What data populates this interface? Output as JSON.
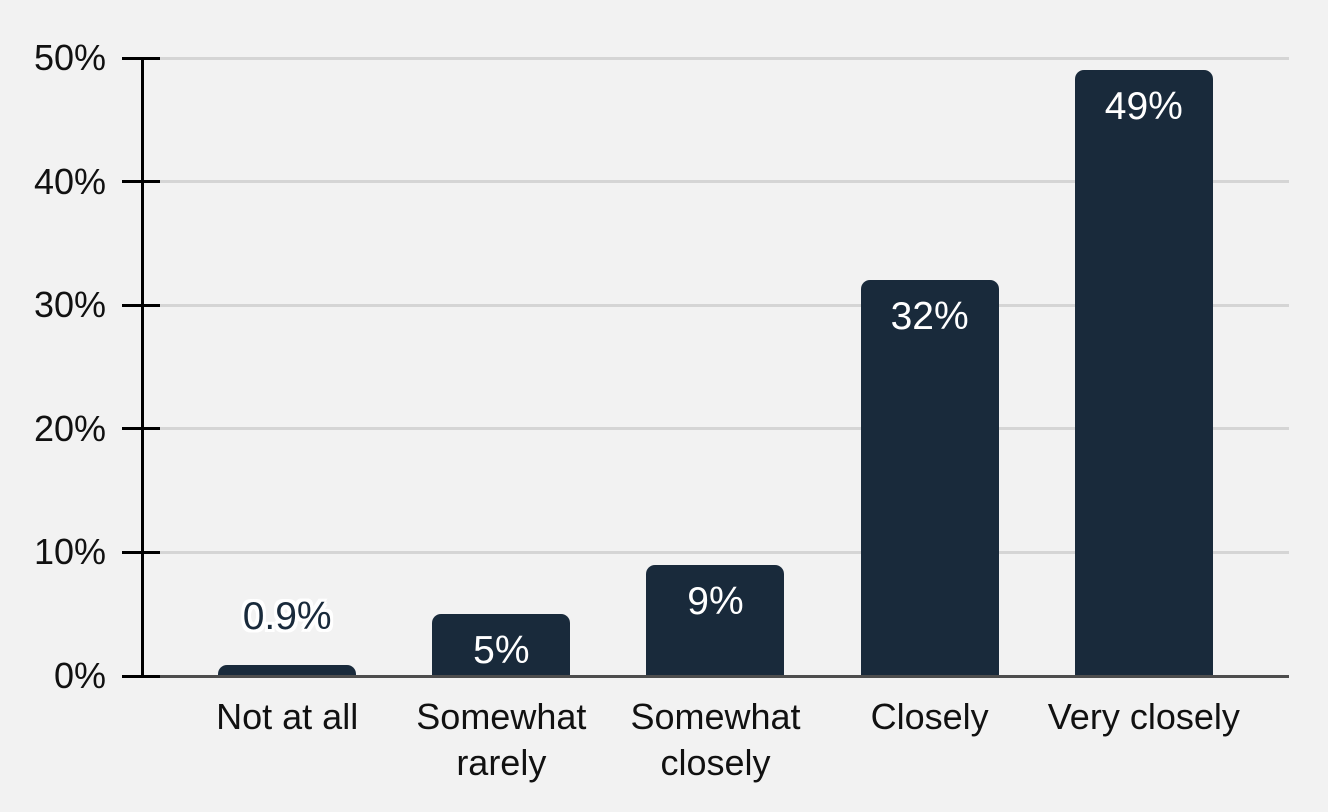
{
  "chart_data": {
    "type": "bar",
    "categories": [
      "Not at all",
      "Somewhat\nrarely",
      "Somewhat\nclosely",
      "Closely",
      "Very closely"
    ],
    "values": [
      0.9,
      5,
      9,
      32,
      49
    ],
    "value_labels": [
      "0.9%",
      "5%",
      "9%",
      "32%",
      "49%"
    ],
    "ylim": [
      0,
      50
    ],
    "yticks": [
      0,
      10,
      20,
      30,
      40,
      50
    ],
    "ytick_labels": [
      "0%",
      "10%",
      "20%",
      "30%",
      "40%",
      "50%"
    ],
    "grid": true,
    "legend": false,
    "colors": {
      "bar": "#192a3b",
      "background": "#f2f2f2",
      "gridline": "#d5d5d5",
      "baseline": "#4d4d4d",
      "axis": "#000000",
      "tick_label": "#111111",
      "bar_label_inside": "#ffffff",
      "bar_label_outside": "#192a3b"
    }
  }
}
